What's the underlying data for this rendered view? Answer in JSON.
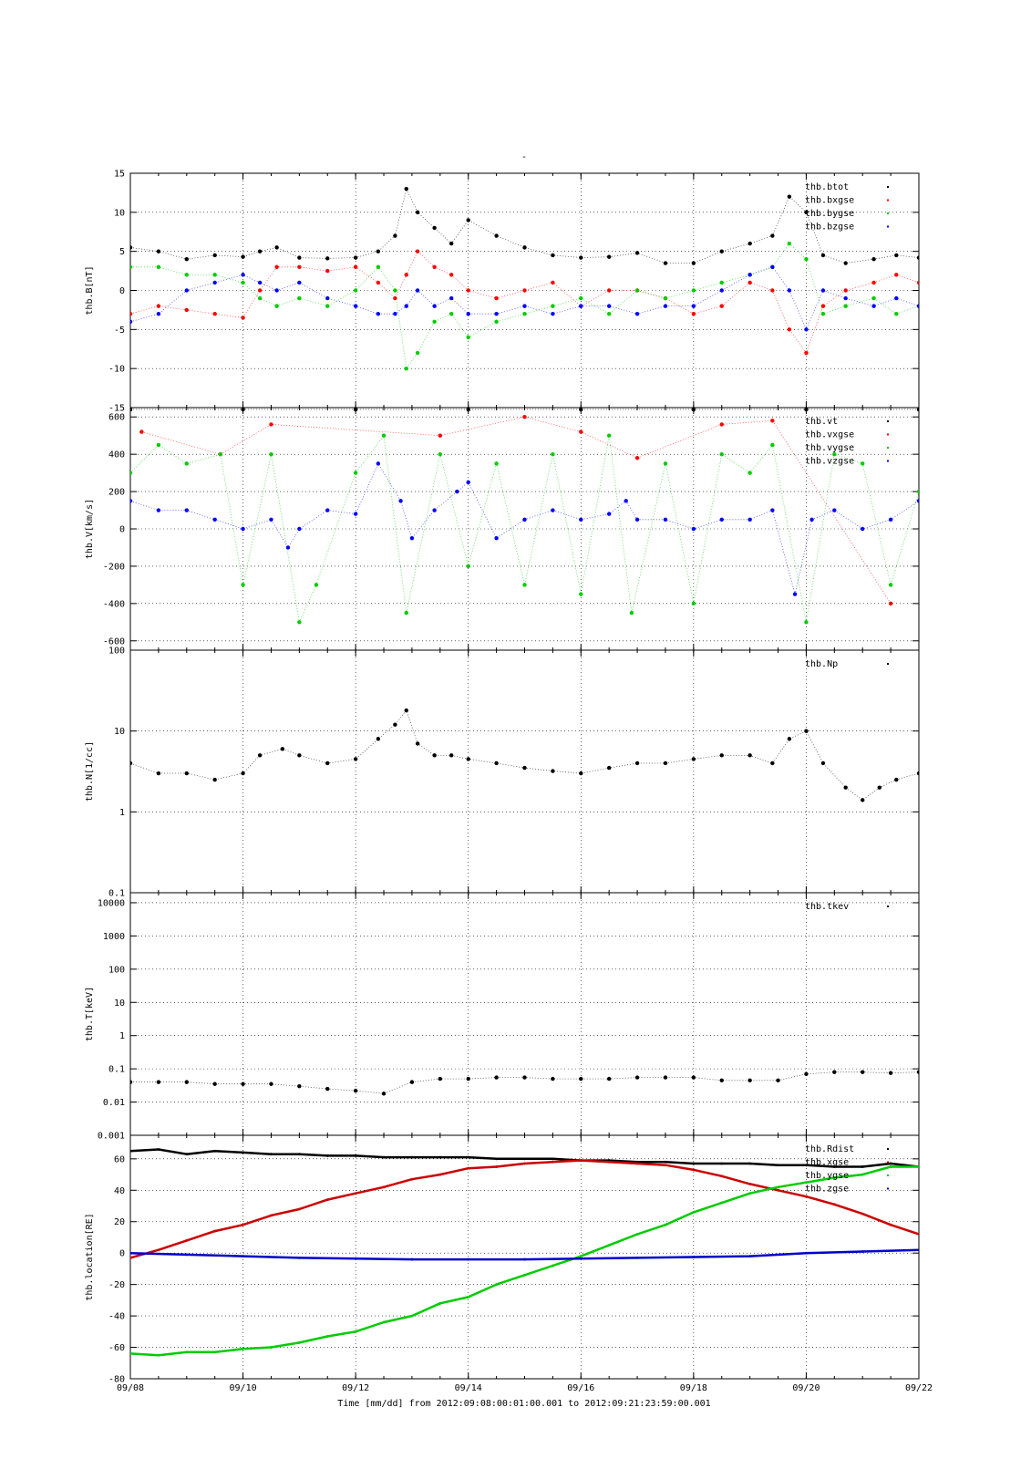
{
  "figure_title": "-",
  "chart_data": [
    {
      "type": "scatter",
      "ylabel": "thb.B[nT]",
      "ylim": [
        -15,
        15
      ],
      "yscale": "linear",
      "yticks": [
        "-15",
        "-10",
        "-5",
        "0",
        "5",
        "10",
        "15"
      ],
      "grid": true,
      "legend_placement": "top-right",
      "series": [
        {
          "name": "thb.btot",
          "color": "#000000",
          "x": [
            8.0,
            8.5,
            9.0,
            9.5,
            10.0,
            10.3,
            10.6,
            11.0,
            11.5,
            12.0,
            12.4,
            12.7,
            12.9,
            13.1,
            13.4,
            13.7,
            14.0,
            14.5,
            15.0,
            15.5,
            16.0,
            16.5,
            17.0,
            17.5,
            18.0,
            18.5,
            19.0,
            19.4,
            19.7,
            20.0,
            20.3,
            20.7,
            21.2,
            21.6,
            22.0
          ],
          "y": [
            5.5,
            5,
            4,
            4.5,
            4.3,
            5,
            5.5,
            4.2,
            4.1,
            4.2,
            5,
            7,
            13,
            10,
            8,
            6,
            9,
            7,
            5.5,
            4.5,
            4.2,
            4.3,
            4.8,
            3.5,
            3.5,
            5,
            6,
            7,
            12,
            10,
            4.5,
            3.5,
            4,
            4.5,
            4.2
          ]
        },
        {
          "name": "thb.bxgse",
          "color": "#ff0000",
          "x": [
            8.0,
            8.5,
            9.0,
            9.5,
            10.0,
            10.3,
            10.6,
            11.0,
            11.5,
            12.0,
            12.4,
            12.7,
            12.9,
            13.1,
            13.4,
            13.7,
            14.0,
            14.5,
            15.0,
            15.5,
            16.0,
            16.5,
            17.0,
            17.5,
            18.0,
            18.5,
            19.0,
            19.4,
            19.7,
            20.0,
            20.3,
            20.7,
            21.2,
            21.6,
            22.0
          ],
          "y": [
            -3,
            -2,
            -2.5,
            -3,
            -3.5,
            0,
            3,
            3,
            2.5,
            3,
            1,
            -1,
            2,
            5,
            3,
            2,
            0,
            -1,
            0,
            1,
            -2,
            0,
            0,
            -1,
            -3,
            -2,
            1,
            0,
            -5,
            -8,
            -2,
            0,
            1,
            2,
            1
          ]
        },
        {
          "name": "thb.bygse",
          "color": "#00cc00",
          "x": [
            8.0,
            8.5,
            9.0,
            9.5,
            10.0,
            10.3,
            10.6,
            11.0,
            11.5,
            12.0,
            12.4,
            12.7,
            12.9,
            13.1,
            13.4,
            13.7,
            14.0,
            14.5,
            15.0,
            15.5,
            16.0,
            16.5,
            17.0,
            17.5,
            18.0,
            18.5,
            19.0,
            19.4,
            19.7,
            20.0,
            20.3,
            20.7,
            21.2,
            21.6,
            22.0
          ],
          "y": [
            3,
            3,
            2,
            2,
            1,
            -1,
            -2,
            -1,
            -2,
            0,
            3,
            0,
            -10,
            -8,
            -4,
            -3,
            -6,
            -4,
            -3,
            -2,
            -1,
            -3,
            0,
            -1,
            0,
            1,
            2,
            3,
            6,
            4,
            -3,
            -2,
            -1,
            -3,
            -2
          ]
        },
        {
          "name": "thb.bzgse",
          "color": "#0000ff",
          "x": [
            8.0,
            8.5,
            9.0,
            9.5,
            10.0,
            10.3,
            10.6,
            11.0,
            11.5,
            12.0,
            12.4,
            12.7,
            12.9,
            13.1,
            13.4,
            13.7,
            14.0,
            14.5,
            15.0,
            15.5,
            16.0,
            16.5,
            17.0,
            17.5,
            18.0,
            18.5,
            19.0,
            19.4,
            19.7,
            20.0,
            20.3,
            20.7,
            21.2,
            21.6,
            22.0
          ],
          "y": [
            -4,
            -3,
            0,
            1,
            2,
            1,
            0,
            1,
            -1,
            -2,
            -3,
            -3,
            -2,
            0,
            -2,
            -1,
            -3,
            -3,
            -2,
            -3,
            -2,
            -2,
            -3,
            -2,
            -2,
            0,
            2,
            3,
            0,
            -5,
            0,
            -1,
            -2,
            -1,
            -2
          ]
        }
      ]
    },
    {
      "type": "scatter",
      "ylabel": "thb.V[km/s]",
      "ylim": [
        -650,
        650
      ],
      "yscale": "linear",
      "yticks": [
        "-600",
        "-400",
        "-200",
        "0",
        "200",
        "400",
        "600"
      ],
      "grid": true,
      "legend_placement": "top-right",
      "series": [
        {
          "name": "thb.vt",
          "color": "#000000",
          "x": [
            8.0,
            10.0,
            12.0,
            14.0,
            16.0,
            18.0,
            20.0,
            22.0
          ],
          "y": [
            640,
            640,
            640,
            640,
            640,
            640,
            640,
            640
          ]
        },
        {
          "name": "thb.vxgse",
          "color": "#ff0000",
          "x": [
            8.2,
            9.6,
            10.5,
            13.5,
            15.0,
            16.0,
            17.0,
            18.5,
            19.4,
            21.5
          ],
          "y": [
            520,
            400,
            560,
            500,
            600,
            520,
            380,
            560,
            580,
            -400
          ]
        },
        {
          "name": "thb.vygse",
          "color": "#00cc00",
          "x": [
            8.0,
            8.5,
            9.0,
            9.6,
            10.0,
            10.5,
            11.0,
            11.3,
            12.0,
            12.5,
            12.9,
            13.5,
            14.0,
            14.5,
            15.0,
            15.5,
            16.0,
            16.5,
            16.9,
            17.5,
            18.0,
            18.5,
            19.0,
            19.4,
            20.0,
            20.5,
            21.0,
            21.5,
            22.0
          ],
          "y": [
            300,
            450,
            350,
            400,
            -300,
            400,
            -500,
            -300,
            300,
            500,
            -450,
            400,
            -200,
            350,
            -300,
            400,
            -350,
            500,
            -450,
            350,
            -400,
            400,
            300,
            450,
            -500,
            400,
            350,
            -300,
            200
          ]
        },
        {
          "name": "thb.vzgse",
          "color": "#0000ff",
          "x": [
            8.0,
            8.5,
            9.0,
            9.5,
            10.0,
            10.5,
            10.8,
            11.0,
            11.5,
            12.0,
            12.4,
            12.8,
            13.0,
            13.4,
            13.8,
            14.0,
            14.5,
            15.0,
            15.5,
            16.0,
            16.5,
            16.8,
            17.0,
            17.5,
            18.0,
            18.5,
            19.0,
            19.4,
            19.8,
            20.1,
            20.5,
            21.0,
            21.5,
            22.0
          ],
          "y": [
            150,
            100,
            100,
            50,
            0,
            50,
            -100,
            0,
            100,
            80,
            350,
            150,
            -50,
            100,
            200,
            250,
            -50,
            50,
            100,
            50,
            80,
            150,
            50,
            50,
            0,
            50,
            50,
            100,
            -350,
            50,
            100,
            0,
            50,
            150
          ]
        }
      ]
    },
    {
      "type": "scatter",
      "ylabel": "thb.N[1/cc]",
      "ylim": [
        0.1,
        100
      ],
      "yscale": "log",
      "yticks": [
        "0.1",
        "1",
        "10",
        "100"
      ],
      "grid": true,
      "legend_placement": "top-right",
      "series": [
        {
          "name": "thb.Np",
          "color": "#000000",
          "x": [
            8.0,
            8.5,
            9.0,
            9.5,
            10.0,
            10.3,
            10.7,
            11.0,
            11.5,
            12.0,
            12.4,
            12.7,
            12.9,
            13.1,
            13.4,
            13.7,
            14.0,
            14.5,
            15.0,
            15.5,
            16.0,
            16.5,
            17.0,
            17.5,
            18.0,
            18.5,
            19.0,
            19.4,
            19.7,
            20.0,
            20.3,
            20.7,
            21.0,
            21.3,
            21.6,
            22.0
          ],
          "y": [
            4,
            3,
            3,
            2.5,
            3,
            5,
            6,
            5,
            4,
            4.5,
            8,
            12,
            18,
            7,
            5,
            5,
            4.5,
            4,
            3.5,
            3.2,
            3,
            3.5,
            4,
            4,
            4.5,
            5,
            5,
            4,
            8,
            10,
            4,
            2,
            1.4,
            2,
            2.5,
            3
          ]
        }
      ]
    },
    {
      "type": "scatter",
      "ylabel": "thb.T[keV]",
      "ylim": [
        0.001,
        20000
      ],
      "yscale": "log",
      "yticks": [
        "0.001",
        "0.01",
        "0.1",
        "1",
        "10",
        "100",
        "1000",
        "10000"
      ],
      "grid": true,
      "legend_placement": "top-right",
      "series": [
        {
          "name": "thb.tkev",
          "color": "#000000",
          "x": [
            8.0,
            8.5,
            9.0,
            9.5,
            10.0,
            10.5,
            11.0,
            11.5,
            12.0,
            12.5,
            13.0,
            13.5,
            14.0,
            14.5,
            15.0,
            15.5,
            16.0,
            16.5,
            17.0,
            17.5,
            18.0,
            18.5,
            19.0,
            19.5,
            20.0,
            20.5,
            21.0,
            21.5,
            22.0
          ],
          "y": [
            0.04,
            0.04,
            0.04,
            0.035,
            0.035,
            0.035,
            0.03,
            0.025,
            0.022,
            0.018,
            0.04,
            0.05,
            0.05,
            0.055,
            0.055,
            0.05,
            0.05,
            0.05,
            0.055,
            0.055,
            0.055,
            0.045,
            0.045,
            0.045,
            0.07,
            0.08,
            0.08,
            0.075,
            0.08
          ]
        }
      ]
    },
    {
      "type": "line",
      "ylabel": "thb.location[RE]",
      "ylim": [
        -80,
        75
      ],
      "yscale": "linear",
      "yticks": [
        "-80",
        "-60",
        "-40",
        "-20",
        "0",
        "20",
        "40",
        "60"
      ],
      "grid": true,
      "legend_placement": "top-right",
      "series": [
        {
          "name": "thb.Rdist",
          "color": "#000000",
          "x": [
            8.0,
            8.5,
            9.0,
            9.5,
            10.0,
            10.5,
            11.0,
            11.5,
            12.0,
            12.5,
            13.0,
            13.5,
            14.0,
            14.5,
            15.0,
            15.5,
            16.0,
            16.5,
            17.0,
            17.5,
            18.0,
            18.5,
            19.0,
            19.5,
            20.0,
            20.5,
            21.0,
            21.5,
            22.0
          ],
          "y": [
            65,
            66,
            63,
            65,
            64,
            63,
            63,
            62,
            62,
            61,
            61,
            61,
            61,
            60,
            60,
            60,
            59,
            59,
            58,
            58,
            57,
            57,
            57,
            56,
            56,
            55,
            55,
            57,
            55
          ]
        },
        {
          "name": "thb.xgse",
          "color": "#cc0000",
          "x": [
            8.0,
            8.5,
            9.0,
            9.5,
            10.0,
            10.5,
            11.0,
            11.5,
            12.0,
            12.5,
            13.0,
            13.5,
            14.0,
            14.5,
            15.0,
            15.5,
            16.0,
            16.5,
            17.0,
            17.5,
            18.0,
            18.5,
            19.0,
            19.5,
            20.0,
            20.5,
            21.0,
            21.5,
            22.0
          ],
          "y": [
            -3,
            2,
            8,
            14,
            18,
            24,
            28,
            34,
            38,
            42,
            47,
            50,
            54,
            55,
            57,
            58,
            59,
            58,
            57,
            56,
            53,
            49,
            44,
            40,
            36,
            31,
            25,
            18,
            12
          ]
        },
        {
          "name": "thb.ygse",
          "color": "#00cc00",
          "x": [
            8.0,
            8.5,
            9.0,
            9.5,
            10.0,
            10.5,
            11.0,
            11.5,
            12.0,
            12.5,
            13.0,
            13.5,
            14.0,
            14.5,
            15.0,
            15.5,
            16.0,
            16.5,
            17.0,
            17.5,
            18.0,
            18.5,
            19.0,
            19.5,
            20.0,
            20.5,
            21.0,
            21.5,
            22.0
          ],
          "y": [
            -64,
            -65,
            -63,
            -63,
            -61,
            -60,
            -57,
            -53,
            -50,
            -44,
            -40,
            -32,
            -28,
            -20,
            -14,
            -8,
            -2,
            5,
            12,
            18,
            26,
            32,
            38,
            42,
            45,
            48,
            50,
            55,
            55
          ]
        },
        {
          "name": "thb.zgse",
          "color": "#0000cc",
          "x": [
            8.0,
            9.0,
            10.0,
            11.0,
            12.0,
            13.0,
            14.0,
            15.0,
            16.0,
            17.0,
            18.0,
            19.0,
            20.0,
            21.0,
            22.0
          ],
          "y": [
            0,
            -1,
            -2,
            -3,
            -3.5,
            -4,
            -4,
            -4,
            -3.5,
            -3,
            -2.5,
            -2,
            0,
            1,
            2
          ]
        }
      ]
    }
  ],
  "x_axis": {
    "xlim": [
      8,
      22
    ],
    "ticks": [
      "09/08",
      "09/10",
      "09/12",
      "09/14",
      "09/16",
      "09/18",
      "09/20",
      "09/22"
    ],
    "xlabel": "Time [mm/dd]  from 2012:09:08:00:01:00.001  to  2012:09:21:23:59:00.001"
  }
}
